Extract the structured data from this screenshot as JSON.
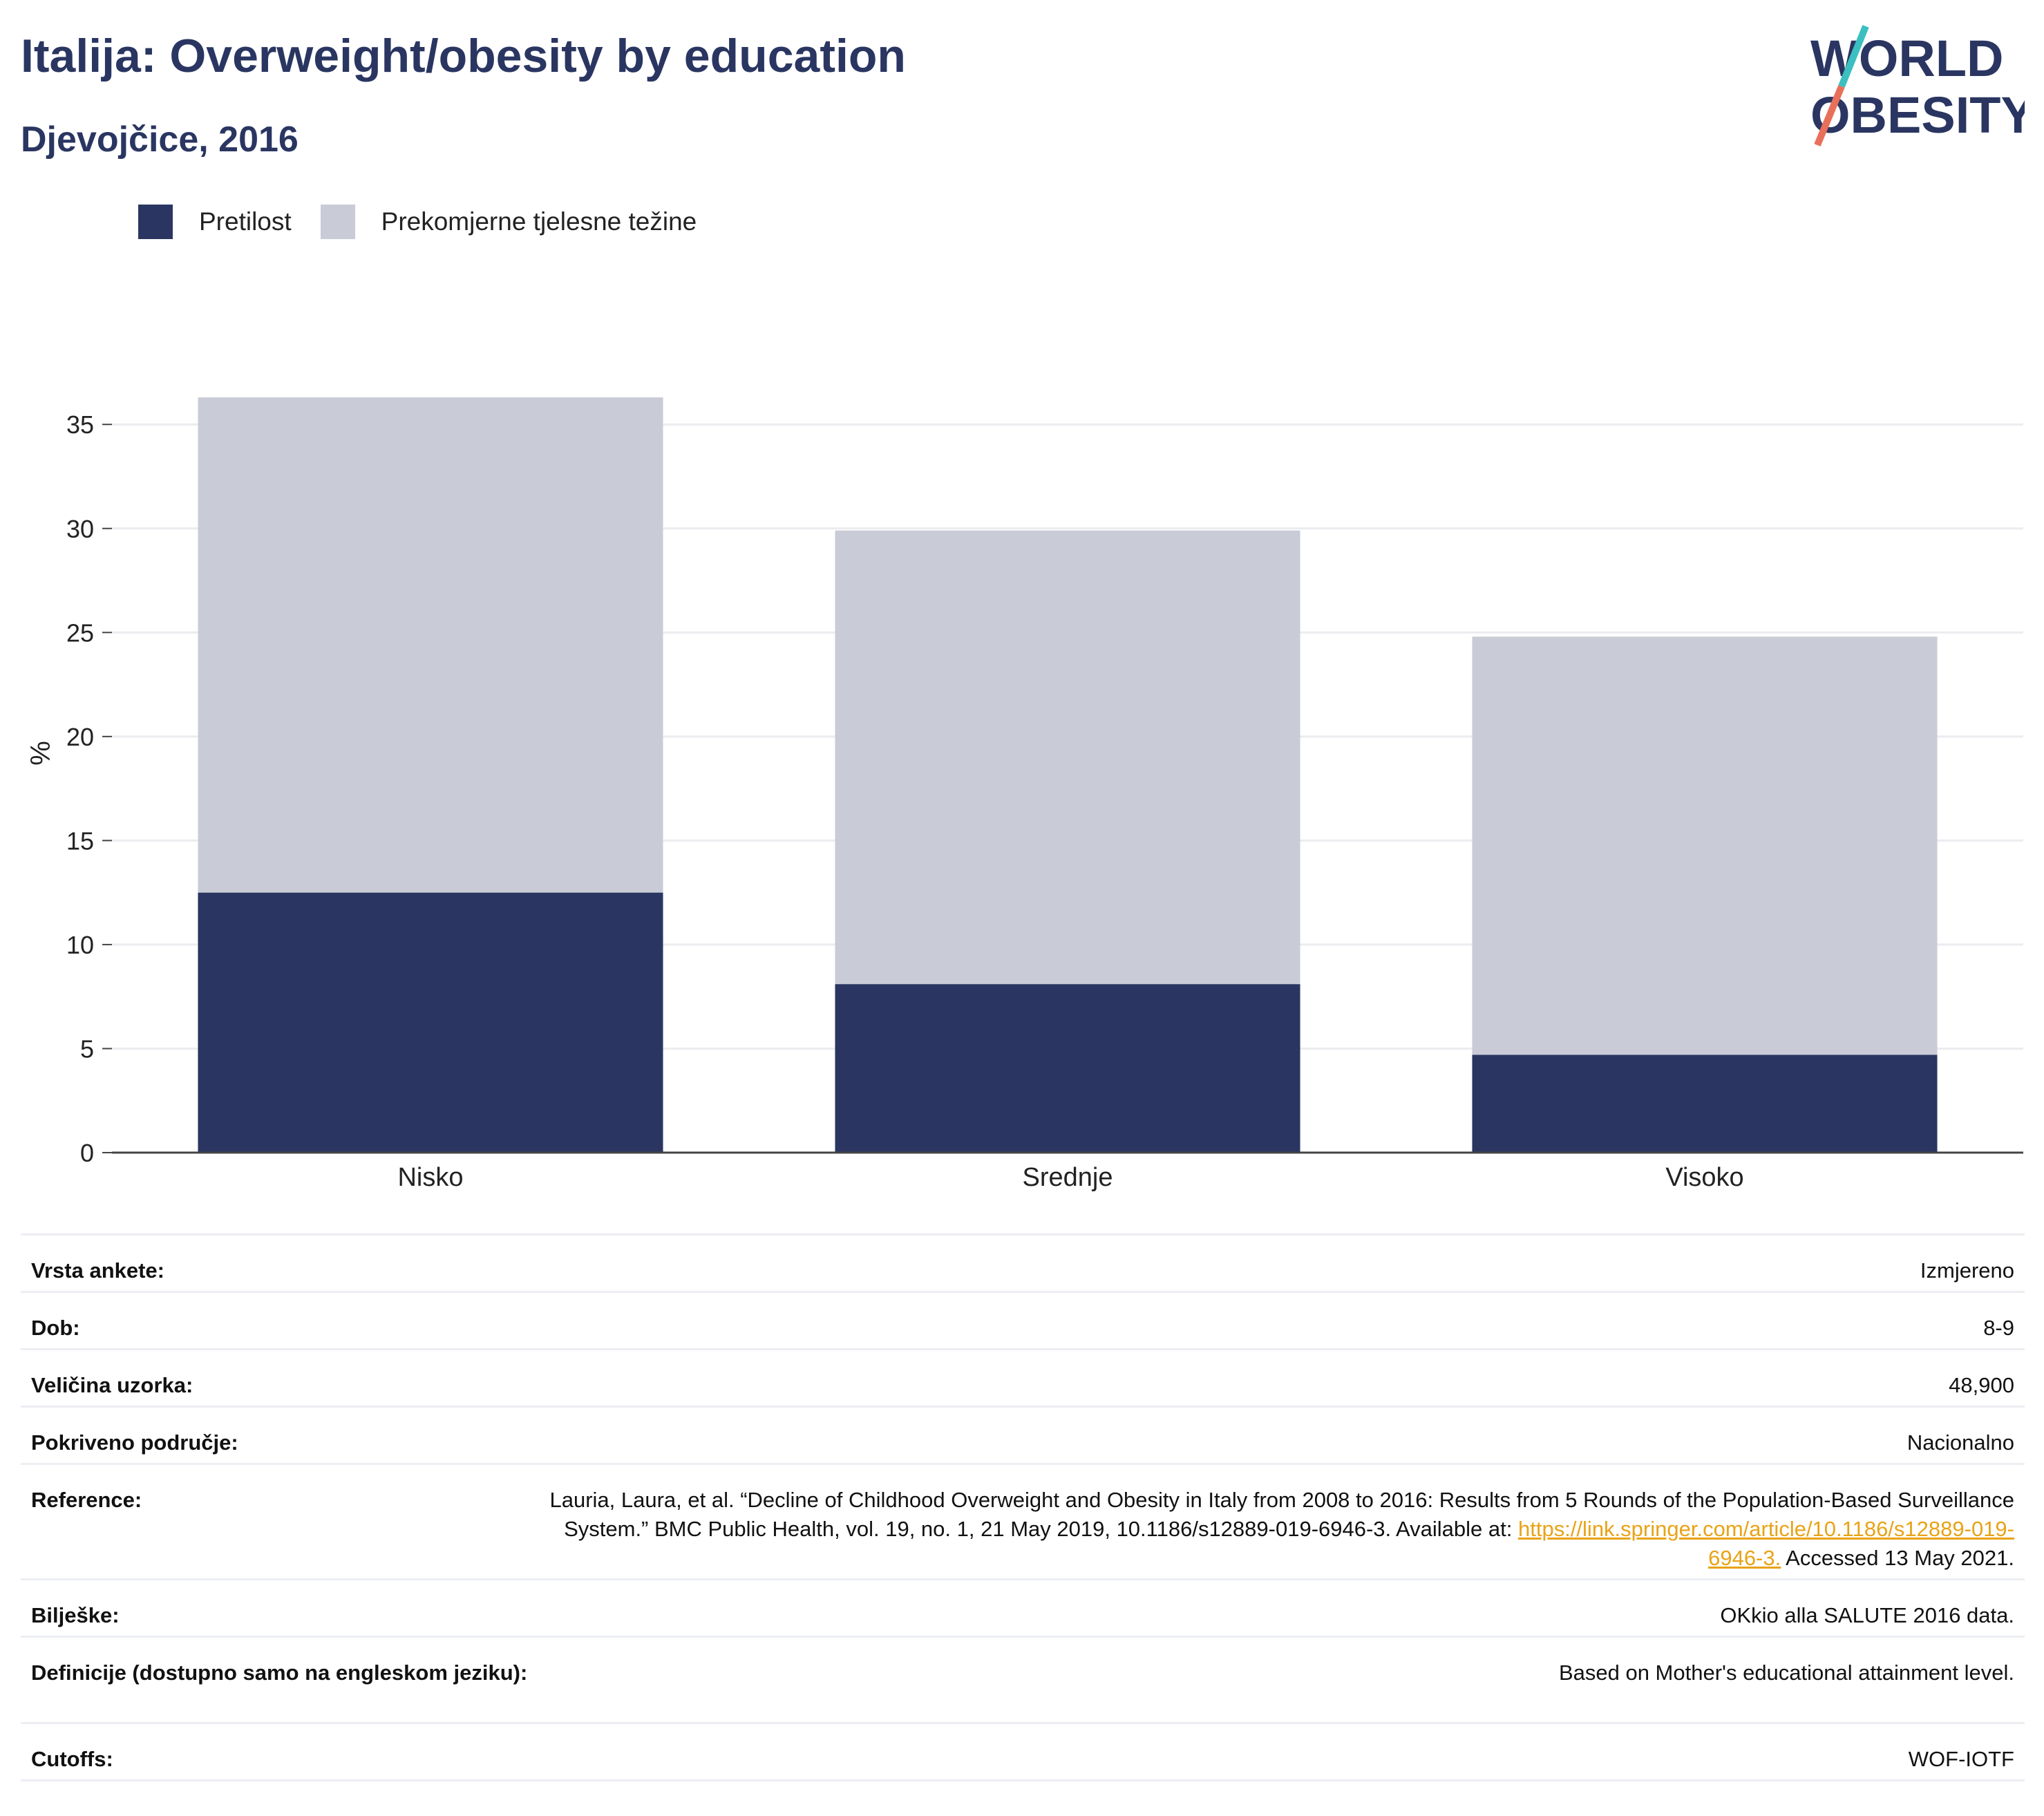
{
  "header": {
    "title": "Italija: Overweight/obesity by education",
    "subtitle": "Djevojčice, 2016"
  },
  "logo": {
    "line1": "WORLD",
    "line2": "OBESITY"
  },
  "colors": {
    "obesity": "#2a3661",
    "overweight": "#c9cbd6",
    "title": "#2a3661",
    "link": "#e8a317"
  },
  "chart_data": {
    "type": "bar",
    "stacked": true,
    "categories": [
      "Nisko",
      "Srednje",
      "Visoko"
    ],
    "series": [
      {
        "name": "Pretilost",
        "values": [
          12.5,
          8.1,
          4.7
        ]
      },
      {
        "name": "Prekomjerne tjelesne težine",
        "values": [
          23.8,
          21.8,
          20.1
        ]
      }
    ],
    "ylabel": "%",
    "ylim": [
      0,
      37
    ],
    "yticks": [
      0,
      5,
      10,
      15,
      20,
      25,
      30,
      35
    ],
    "grid": true,
    "legend": "top-left"
  },
  "info": {
    "survey_type": {
      "label": "Vrsta ankete:",
      "value": "Izmjereno"
    },
    "age": {
      "label": "Dob:",
      "value": "8-9"
    },
    "sample_size": {
      "label": "Veličina uzorka:",
      "value": "48,900"
    },
    "area": {
      "label": "Pokriveno područje:",
      "value": "Nacionalno"
    },
    "references": {
      "label": "Reference:",
      "text": "Lauria, Laura, et al. “Decline of Childhood Overweight and Obesity in Italy from 2008 to 2016: Results from 5 Rounds of the Population-Based Surveillance System.” BMC Public Health, vol. 19, no. 1, 21 May 2019, 10.1186/s12889-019-6946-3. Available at:",
      "link": "https://link.springer.com/article/10.1186/s12889-019-6946-3.",
      "accessed": " Accessed 13 May 2021."
    },
    "notes": {
      "label": "Bilješke:",
      "value": "OKkio alla SALUTE 2016 data."
    },
    "definitions": {
      "label": "Definicije (dostupno samo na engleskom jeziku):",
      "value": "Based on Mother's educational attainment level."
    },
    "cutoffs": {
      "label": "Cutoffs:",
      "value": "WOF-IOTF"
    }
  }
}
